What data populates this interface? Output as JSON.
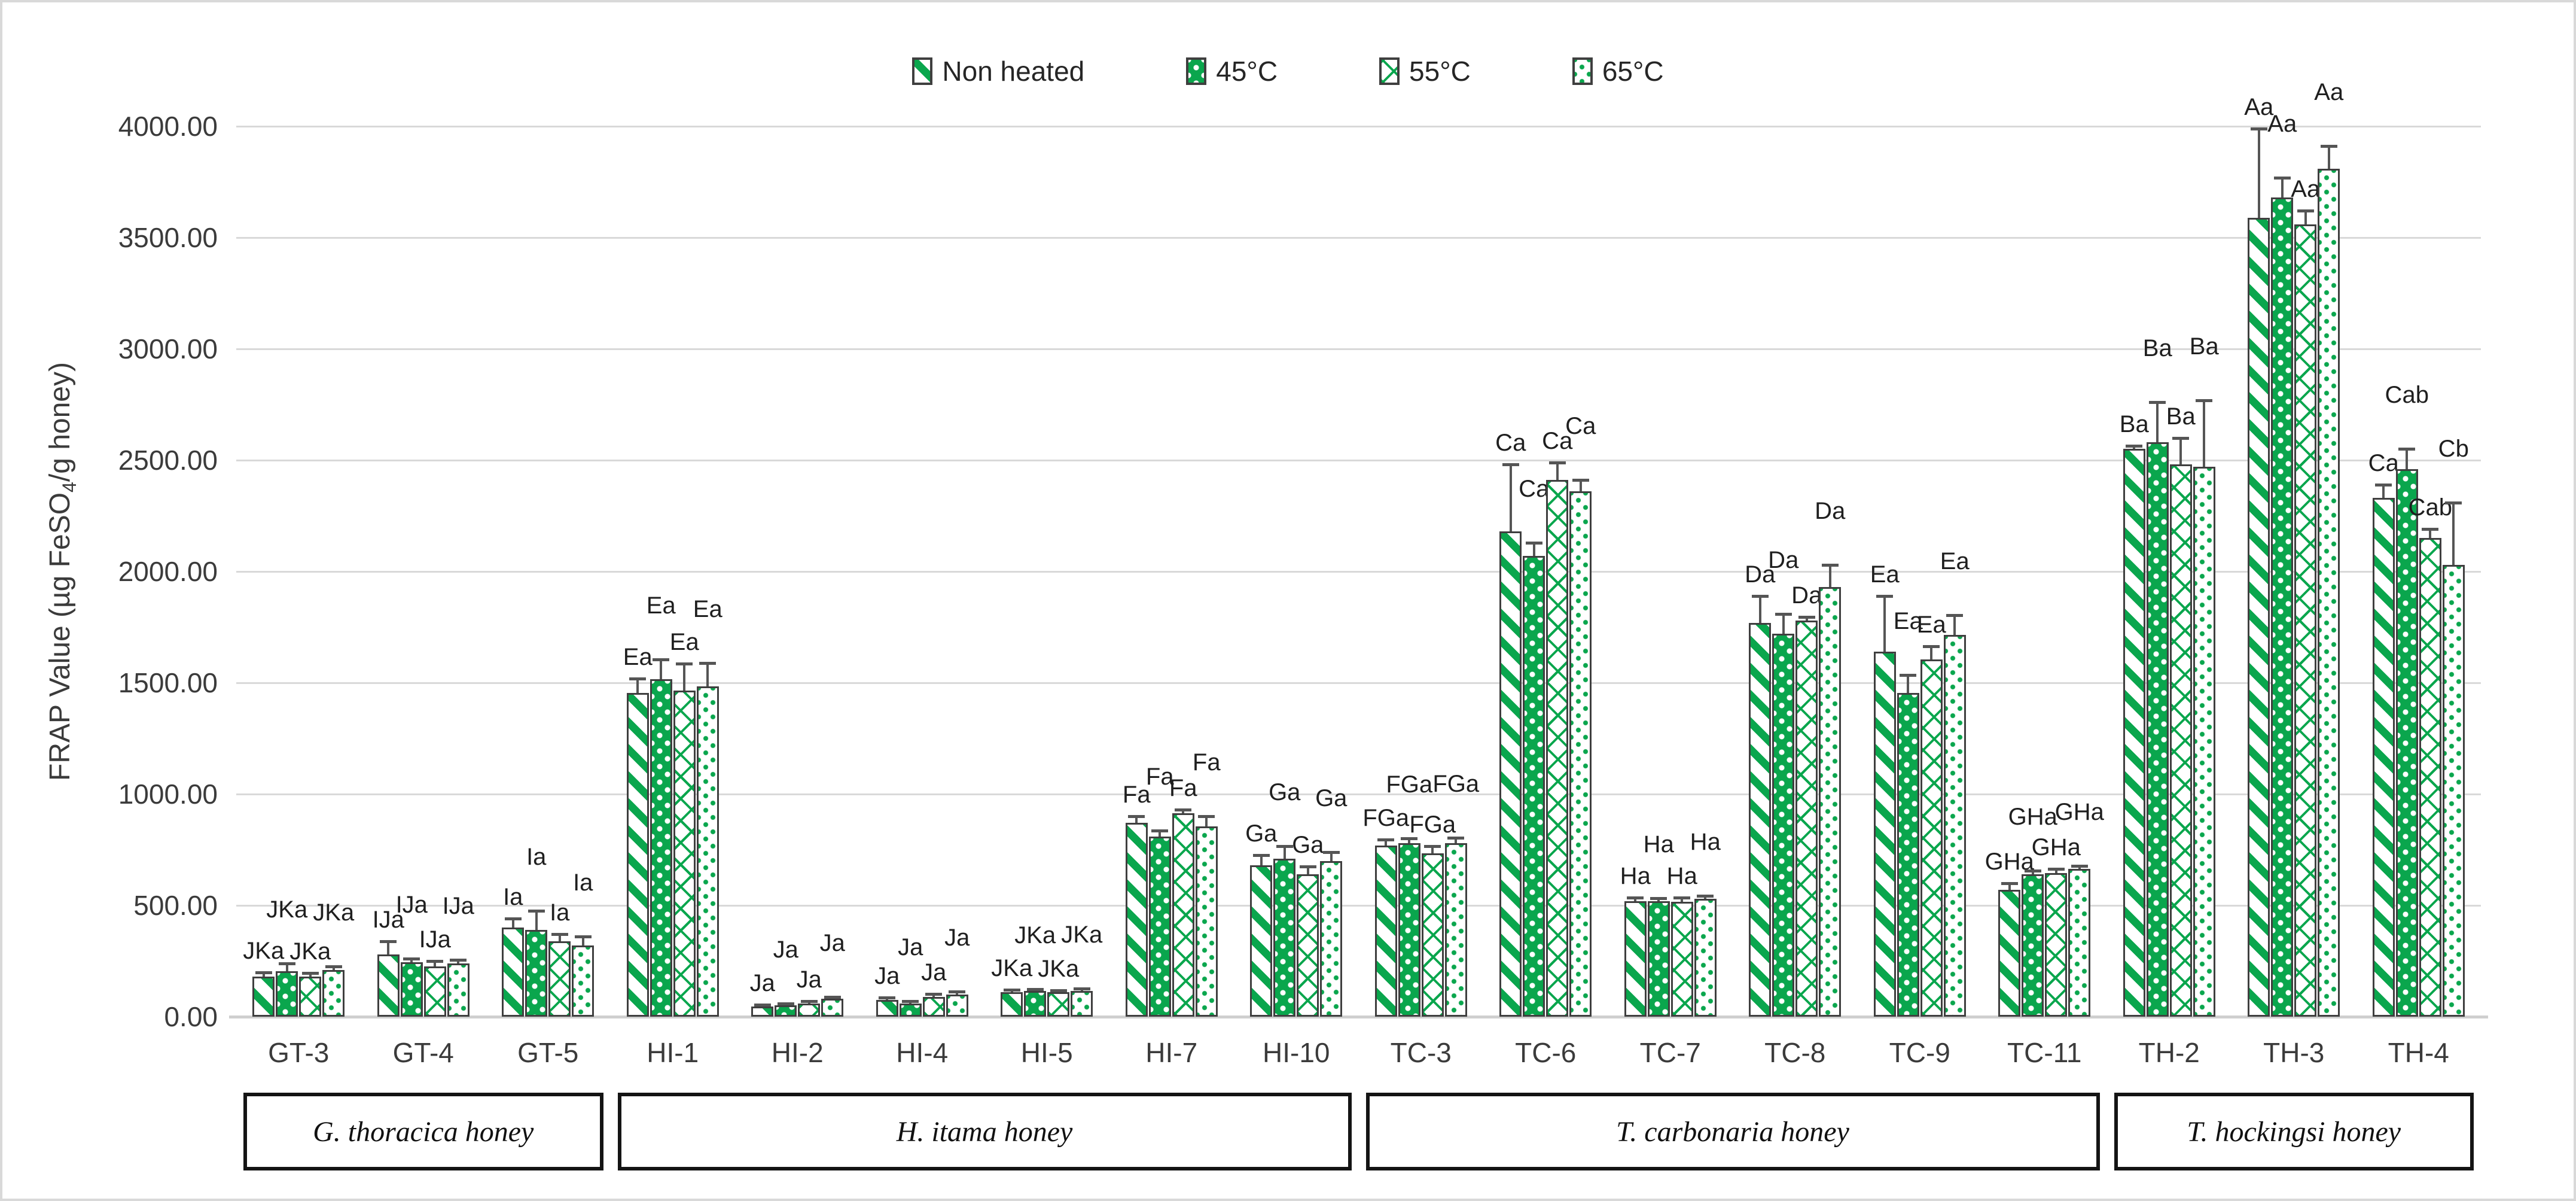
{
  "chart_data": {
    "type": "bar",
    "title": "",
    "ylabel": "FRAP Value (µg FeSO4/g honey)",
    "ylabel_parts": {
      "pre": "FRAP Value (µg FeSO",
      "sub": "4",
      "post": "/g honey)"
    },
    "xlabel": "",
    "ylim": [
      0,
      4000
    ],
    "y_step": 500,
    "grid": true,
    "legend_position": "top-center",
    "y_tick_labels": [
      "0.00",
      "500.00",
      "1000.00",
      "1500.00",
      "2000.00",
      "2500.00",
      "3000.00",
      "3500.00",
      "4000.00"
    ],
    "categories": [
      "GT-3",
      "GT-4",
      "GT-5",
      "HI-1",
      "HI-2",
      "HI-4",
      "HI-5",
      "HI-7",
      "HI-10",
      "TC-3",
      "TC-6",
      "TC-7",
      "TC-8",
      "TC-9",
      "TC-11",
      "TH-2",
      "TH-3",
      "TH-4"
    ],
    "series": [
      {
        "name": "Non heated",
        "pattern": "diagonal-stripes",
        "values": [
          180,
          280,
          400,
          1455,
          45,
          75,
          110,
          870,
          680,
          770,
          2180,
          520,
          1770,
          1640,
          570,
          2550,
          3590,
          2330
        ],
        "errors": [
          20,
          60,
          40,
          65,
          8,
          12,
          10,
          30,
          45,
          25,
          300,
          15,
          120,
          250,
          30,
          15,
          400,
          60
        ]
      },
      {
        "name": "45°C",
        "pattern": "white-dots-on-green",
        "values": [
          205,
          245,
          390,
          1515,
          50,
          60,
          115,
          810,
          710,
          780,
          2070,
          520,
          1720,
          1455,
          640,
          2580,
          3680,
          2460
        ],
        "errors": [
          35,
          15,
          85,
          90,
          8,
          10,
          8,
          25,
          55,
          20,
          60,
          12,
          90,
          80,
          15,
          180,
          90,
          90
        ]
      },
      {
        "name": "55°C",
        "pattern": "diamond-crosshatch",
        "values": [
          180,
          225,
          340,
          1465,
          60,
          90,
          110,
          915,
          640,
          735,
          2410,
          515,
          1780,
          1605,
          645,
          2480,
          3560,
          2150
        ],
        "errors": [
          15,
          25,
          30,
          120,
          10,
          12,
          8,
          15,
          35,
          30,
          80,
          20,
          15,
          60,
          20,
          120,
          60,
          40
        ]
      },
      {
        "name": "65°C",
        "pattern": "green-dots",
        "values": [
          210,
          240,
          320,
          1485,
          80,
          100,
          115,
          855,
          700,
          780,
          2360,
          530,
          1930,
          1715,
          665,
          2470,
          3810,
          2030
        ],
        "errors": [
          15,
          15,
          40,
          105,
          10,
          12,
          12,
          45,
          40,
          25,
          50,
          12,
          100,
          90,
          12,
          300,
          100,
          280
        ]
      }
    ],
    "annotations": [
      [
        "JKa",
        "JKa",
        "JKa",
        "JKa"
      ],
      [
        "IJa",
        "IJa",
        "IJa",
        "IJa"
      ],
      [
        "Ia",
        "Ia",
        "Ia",
        "Ia"
      ],
      [
        "Ea",
        "Ea",
        "Ea",
        "Ea"
      ],
      [
        "Ja",
        "Ja",
        "Ja",
        "Ja"
      ],
      [
        "Ja",
        "Ja",
        "Ja",
        "Ja"
      ],
      [
        "JKa",
        "JKa",
        "JKa",
        "JKa"
      ],
      [
        "Fa",
        "Fa",
        "Fa",
        "Fa"
      ],
      [
        "Ga",
        "Ga",
        "Ga",
        "Ga"
      ],
      [
        "FGa",
        "FGa",
        "FGa",
        "FGa"
      ],
      [
        "Ca",
        "Ca",
        "Ca",
        "Ca"
      ],
      [
        "Ha",
        "Ha",
        "Ha",
        "Ha"
      ],
      [
        "Da",
        "Da",
        "Da",
        "Da"
      ],
      [
        "Ea",
        "Ea",
        "Ea",
        "Ea"
      ],
      [
        "GHa",
        "GHa",
        "GHa",
        "GHa"
      ],
      [
        "Ba",
        "Ba",
        "Ba",
        "Ba"
      ],
      [
        "Aa",
        "Aa",
        "Aa",
        "Aa"
      ],
      [
        "Ca",
        "Cab",
        "Cab",
        "Cb"
      ]
    ],
    "groups": [
      {
        "label": "G. thoracica honey",
        "from": 0,
        "to": 2
      },
      {
        "label": "H. itama honey",
        "from": 3,
        "to": 8
      },
      {
        "label": "T. carbonaria honey",
        "from": 9,
        "to": 14
      },
      {
        "label": "T. hockingsi honey",
        "from": 15,
        "to": 17
      }
    ],
    "colors": {
      "green": "#0aa64d",
      "bar_border": "#3f3f3f",
      "gridline": "#d9d9d9",
      "error_bar": "#555555",
      "axis_text": "#3b3b3b",
      "annotation_text": "#1f1f1f",
      "group_box_border": "#141414"
    }
  }
}
